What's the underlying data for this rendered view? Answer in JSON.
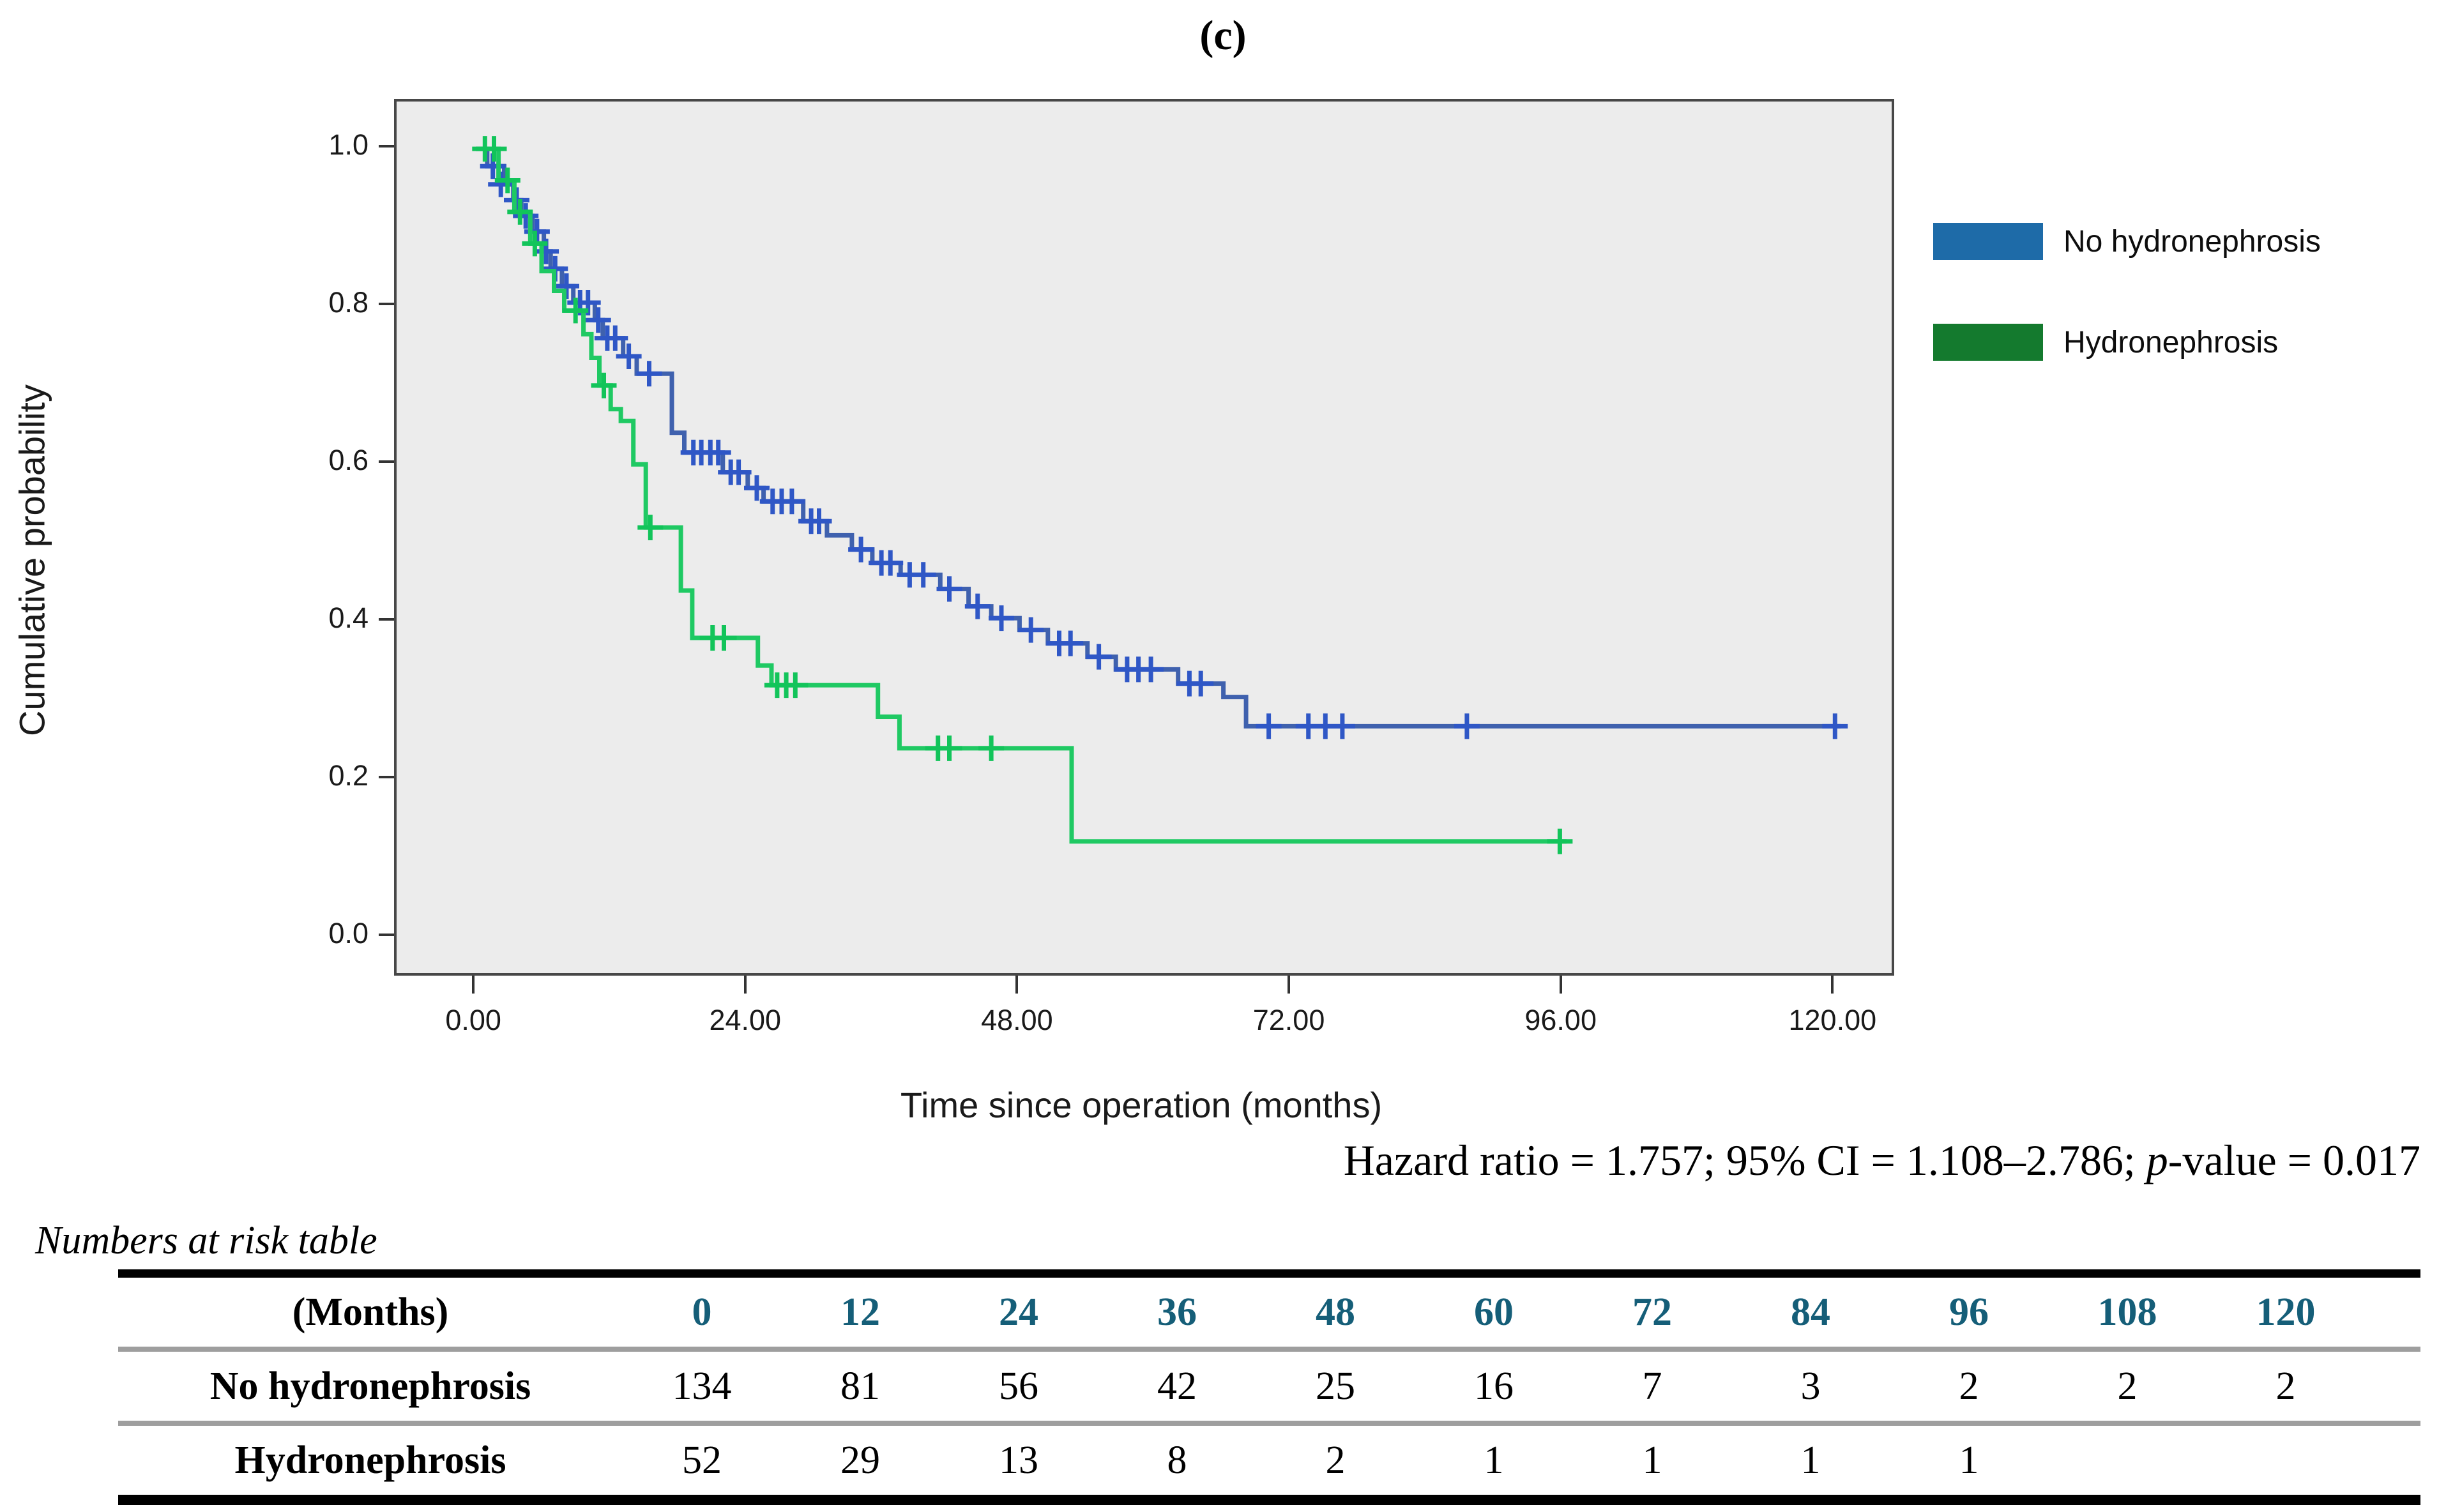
{
  "figure": {
    "panel_label": "(c)"
  },
  "chart_data": {
    "type": "line",
    "subtype": "kaplan-meier-step-curves",
    "title": "(c)",
    "xlabel": "Time since operation (months)",
    "ylabel": "Cumulative probability",
    "xlim": [
      -7,
      125
    ],
    "ylim": [
      -0.045,
      1.06
    ],
    "grid": false,
    "plot_background": "#ececec",
    "legend_position": "right-outside",
    "x_ticks": {
      "values": [
        0,
        24,
        48,
        72,
        96,
        120
      ],
      "labels": [
        "0.00",
        "24.00",
        "48.00",
        "72.00",
        "96.00",
        "120.00"
      ]
    },
    "y_ticks": {
      "values": [
        0.0,
        0.2,
        0.4,
        0.6,
        0.8,
        1.0
      ],
      "labels": [
        "0.0",
        "0.2",
        "0.4",
        "0.6",
        "0.8",
        "1.0"
      ]
    },
    "series": [
      {
        "name": "No hydronephrosis",
        "color": "#3f61ae",
        "censor_color": "#2f57c6",
        "steps": [
          [
            0,
            1.0
          ],
          [
            1,
            0.978
          ],
          [
            2.5,
            0.955
          ],
          [
            3.3,
            0.935
          ],
          [
            4,
            0.915
          ],
          [
            5,
            0.895
          ],
          [
            6,
            0.87
          ],
          [
            6.6,
            0.848
          ],
          [
            7.6,
            0.826
          ],
          [
            8.6,
            0.805
          ],
          [
            10.5,
            0.783
          ],
          [
            11.2,
            0.76
          ],
          [
            13,
            0.737
          ],
          [
            14.2,
            0.715
          ],
          [
            17.3,
            0.64
          ],
          [
            18.4,
            0.615
          ],
          [
            21.8,
            0.59
          ],
          [
            24,
            0.57
          ],
          [
            25.4,
            0.553
          ],
          [
            28.9,
            0.528
          ],
          [
            31,
            0.51
          ],
          [
            33.2,
            0.492
          ],
          [
            35,
            0.475
          ],
          [
            37.5,
            0.46
          ],
          [
            41,
            0.442
          ],
          [
            43.5,
            0.42
          ],
          [
            45.5,
            0.405
          ],
          [
            48,
            0.39
          ],
          [
            50.5,
            0.373
          ],
          [
            54,
            0.356
          ],
          [
            56.5,
            0.34
          ],
          [
            62,
            0.322
          ],
          [
            66,
            0.305
          ],
          [
            68,
            0.268
          ],
          [
            120.5,
            0.268
          ]
        ],
        "censors": [
          [
            1.5,
            0.978
          ],
          [
            2.2,
            0.955
          ],
          [
            3.6,
            0.935
          ],
          [
            4.4,
            0.915
          ],
          [
            5.4,
            0.895
          ],
          [
            6.2,
            0.87
          ],
          [
            7,
            0.848
          ],
          [
            8,
            0.826
          ],
          [
            9.2,
            0.805
          ],
          [
            9.9,
            0.805
          ],
          [
            10.8,
            0.783
          ],
          [
            11.6,
            0.76
          ],
          [
            12.3,
            0.76
          ],
          [
            13.5,
            0.737
          ],
          [
            15.3,
            0.715
          ],
          [
            19.2,
            0.615
          ],
          [
            19.9,
            0.615
          ],
          [
            20.7,
            0.615
          ],
          [
            21.4,
            0.615
          ],
          [
            22.5,
            0.59
          ],
          [
            23.2,
            0.59
          ],
          [
            24.8,
            0.57
          ],
          [
            26.2,
            0.553
          ],
          [
            27,
            0.553
          ],
          [
            27.9,
            0.553
          ],
          [
            29.6,
            0.528
          ],
          [
            30.3,
            0.528
          ],
          [
            34,
            0.492
          ],
          [
            35.8,
            0.475
          ],
          [
            36.6,
            0.475
          ],
          [
            38.3,
            0.46
          ],
          [
            39.5,
            0.46
          ],
          [
            41.8,
            0.442
          ],
          [
            44.3,
            0.42
          ],
          [
            46.4,
            0.405
          ],
          [
            49,
            0.39
          ],
          [
            51.5,
            0.373
          ],
          [
            52.5,
            0.373
          ],
          [
            55,
            0.356
          ],
          [
            57.5,
            0.34
          ],
          [
            58.5,
            0.34
          ],
          [
            59.6,
            0.34
          ],
          [
            63,
            0.322
          ],
          [
            64,
            0.322
          ],
          [
            70,
            0.268
          ],
          [
            73.5,
            0.268
          ],
          [
            75,
            0.268
          ],
          [
            76.5,
            0.268
          ],
          [
            87.5,
            0.268
          ],
          [
            120,
            0.268
          ]
        ]
      },
      {
        "name": "Hydronephrosis",
        "color": "#1fc963",
        "censor_color": "#12c45a",
        "steps": [
          [
            0,
            1.0
          ],
          [
            2,
            0.96
          ],
          [
            3.4,
            0.92
          ],
          [
            4.8,
            0.88
          ],
          [
            5.8,
            0.845
          ],
          [
            6.9,
            0.82
          ],
          [
            7.8,
            0.795
          ],
          [
            9.5,
            0.765
          ],
          [
            10.2,
            0.735
          ],
          [
            10.9,
            0.7
          ],
          [
            11.9,
            0.67
          ],
          [
            12.8,
            0.655
          ],
          [
            13.9,
            0.6
          ],
          [
            15,
            0.52
          ],
          [
            18.1,
            0.44
          ],
          [
            19.1,
            0.38
          ],
          [
            24.9,
            0.345
          ],
          [
            26.1,
            0.32
          ],
          [
            35.5,
            0.28
          ],
          [
            37.4,
            0.24
          ],
          [
            52.6,
            0.122
          ],
          [
            96.3,
            0.122
          ]
        ],
        "censors": [
          [
            0.8,
            1.0
          ],
          [
            1.6,
            1.0
          ],
          [
            2.8,
            0.96
          ],
          [
            3.9,
            0.92
          ],
          [
            5.2,
            0.88
          ],
          [
            8.8,
            0.795
          ],
          [
            11.3,
            0.7
          ],
          [
            15.4,
            0.52
          ],
          [
            20.9,
            0.38
          ],
          [
            21.9,
            0.38
          ],
          [
            26.6,
            0.32
          ],
          [
            27.4,
            0.32
          ],
          [
            28.2,
            0.32
          ],
          [
            40.8,
            0.24
          ],
          [
            41.8,
            0.24
          ],
          [
            45.5,
            0.24
          ],
          [
            95.7,
            0.122
          ]
        ]
      }
    ]
  },
  "legend": {
    "items": [
      {
        "label": "No hydronephrosis",
        "color": "#1e6ba8"
      },
      {
        "label": "Hydronephrosis",
        "color": "#147a2e"
      }
    ]
  },
  "annotation": {
    "prefix": "Hazard ratio = 1.757; 95% CI = 1.108–2.786; ",
    "italic_p": "p",
    "suffix": "-value = 0.017"
  },
  "risk_table": {
    "caption": "Numbers at risk table",
    "header_label": "(Months)",
    "month_color": "#155e78",
    "months": [
      "0",
      "12",
      "24",
      "36",
      "48",
      "60",
      "72",
      "84",
      "96",
      "108",
      "120"
    ],
    "rows": [
      {
        "label": "No hydronephrosis",
        "values": [
          "134",
          "81",
          "56",
          "42",
          "25",
          "16",
          "7",
          "3",
          "2",
          "2",
          "2"
        ]
      },
      {
        "label": "Hydronephrosis",
        "values": [
          "52",
          "29",
          "13",
          "8",
          "2",
          "1",
          "1",
          "1",
          "1",
          "",
          ""
        ]
      }
    ]
  }
}
